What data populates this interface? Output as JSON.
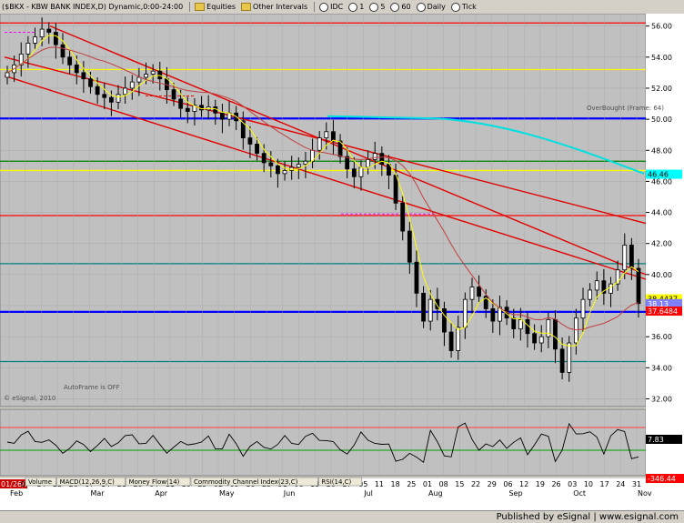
{
  "toolbar": {
    "symbol": "($BKX - KBW BANK INDEX,D) Dynamic,0:00-24:00",
    "items": [
      "Equities",
      "Other Intervals",
      "IDC",
      "1",
      "5",
      "60",
      "Daily",
      "Tick"
    ]
  },
  "chart_data": {
    "type": "candlestick",
    "series_name": "$BKX",
    "ylim": [
      31.5,
      56.8
    ],
    "y_ticks": [
      56.0,
      54.0,
      52.0,
      50.0,
      48.0,
      46.0,
      44.0,
      42.0,
      40.0,
      38.0,
      36.0,
      34.0,
      32.0
    ],
    "x_tick_labels": [
      "01/26/11",
      "07",
      "14",
      "22",
      "28",
      "07",
      "14",
      "21",
      "28",
      "04",
      "11",
      "18",
      "25",
      "02",
      "09",
      "16",
      "23",
      "31",
      "06",
      "13",
      "20",
      "27",
      "05",
      "11",
      "18",
      "25",
      "01",
      "08",
      "15",
      "22",
      "29",
      "06",
      "12",
      "19",
      "26",
      "03",
      "10",
      "17",
      "24",
      "31"
    ],
    "month_labels": [
      "Feb",
      "Mar",
      "Apr",
      "May",
      "Jun",
      "Jul",
      "Aug",
      "Sep",
      "Oct",
      "Nov"
    ],
    "price_flags": [
      {
        "label": "46.46",
        "value": 46.46,
        "color": "#00ffff"
      },
      {
        "label": "38.4437",
        "value": 38.44,
        "color": "#ffff00"
      },
      {
        "label": "38.13",
        "value": 38.13,
        "color": "#8080ff"
      },
      {
        "label": "37.6484",
        "value": 37.65,
        "color": "#ff0000"
      }
    ],
    "horizontal_lines": [
      {
        "value": 56.2,
        "color": "#ff0000"
      },
      {
        "value": 53.2,
        "color": "#ffff00"
      },
      {
        "value": 50.05,
        "color": "#0000ff"
      },
      {
        "value": 47.3,
        "color": "#008000"
      },
      {
        "value": 46.7,
        "color": "#ffff00"
      },
      {
        "value": 43.8,
        "color": "#ff0000"
      },
      {
        "value": 40.7,
        "color": "#008080"
      },
      {
        "value": 37.6,
        "color": "#0000ff"
      },
      {
        "value": 34.4,
        "color": "#008080"
      }
    ],
    "annotations": [
      "OverBought (Frame: 64)",
      "AutoFrame is OFF",
      "© eSignal, 2010"
    ],
    "closes": [
      53.0,
      53.5,
      54.2,
      54.9,
      55.3,
      55.8,
      55.6,
      54.8,
      54.0,
      53.5,
      53.0,
      52.6,
      52.1,
      51.6,
      51.4,
      51.1,
      51.6,
      52.0,
      52.4,
      52.7,
      52.9,
      53.1,
      52.6,
      51.9,
      51.3,
      50.7,
      50.5,
      50.9,
      50.6,
      50.8,
      50.4,
      50.0,
      50.4,
      49.9,
      48.8,
      48.4,
      47.8,
      47.2,
      47.0,
      46.5,
      46.7,
      46.9,
      47.1,
      47.3,
      48.0,
      48.8,
      49.2,
      48.6,
      47.6,
      46.8,
      46.3,
      46.9,
      47.4,
      47.8,
      47.1,
      46.4,
      44.6,
      42.8,
      40.8,
      38.8,
      37.0,
      38.4,
      37.8,
      36.3,
      35.1,
      36.6,
      38.4,
      39.2,
      38.6,
      37.8,
      37.0,
      37.9,
      37.2,
      36.5,
      37.1,
      36.2,
      35.6,
      36.0,
      37.1,
      35.2,
      33.7,
      35.6,
      37.2,
      38.4,
      39.0,
      39.6,
      38.8,
      39.4,
      40.3,
      41.9,
      40.4,
      38.13
    ],
    "sub_panel": {
      "name": "RSI(14,C)",
      "value_label": "7.83",
      "top_label": "",
      "bottom_label": "-346.44"
    },
    "sub_tabs": [
      "Volume",
      "MACD(12,26,9,C)",
      "Money Flow(14)",
      "Commodity Channel Index(23,C)",
      "RSI(14,C)"
    ]
  },
  "footer": {
    "text": "Published by eSignal | www.esignal.com"
  }
}
